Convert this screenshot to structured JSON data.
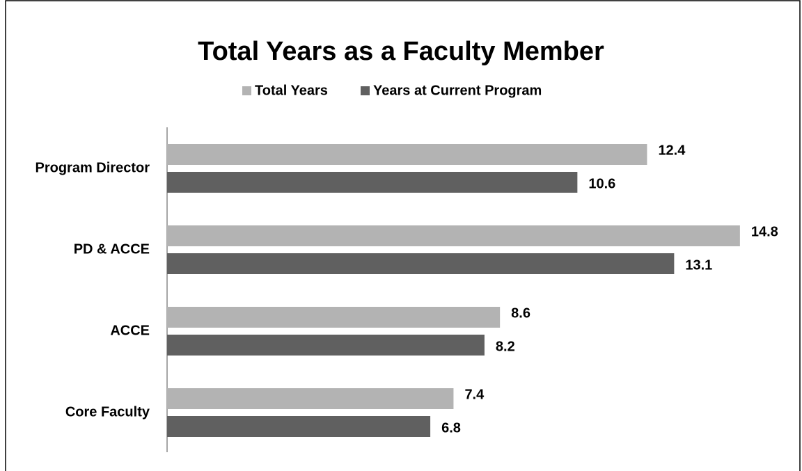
{
  "chart_data": {
    "type": "hbar",
    "title": "Total Years as a Faculty Member",
    "categories": [
      "Program Director",
      "PD & ACCE",
      "ACCE",
      "Core Faculty"
    ],
    "series": [
      {
        "name": "Total Years",
        "color": "#b3b3b3",
        "values": [
          12.4,
          14.8,
          8.6,
          7.4
        ]
      },
      {
        "name": "Years at Current Program",
        "color": "#606060",
        "values": [
          10.6,
          13.1,
          8.2,
          6.8
        ]
      }
    ],
    "legend": "top"
  }
}
